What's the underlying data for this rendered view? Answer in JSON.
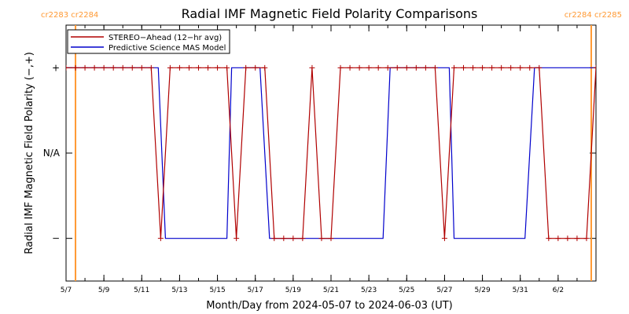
{
  "chart_data": {
    "type": "line",
    "title": "Radial IMF Magnetic Field Polarity Comparisons",
    "xlabel": "Month/Day from 2024-05-07 to 2024-06-03 (UT)",
    "ylabel": "Radial IMF Magnetic Field Polarity (−,+)",
    "xlim": [
      "2024-05-07",
      "2024-06-03"
    ],
    "ylim": [
      -1.5,
      1.5
    ],
    "x_ticks": [
      "5/7",
      "5/9",
      "5/11",
      "5/13",
      "5/15",
      "5/17",
      "5/19",
      "5/21",
      "5/23",
      "5/25",
      "5/27",
      "5/29",
      "5/31",
      "6/2"
    ],
    "y_ticks": [
      {
        "value": 1,
        "label": "+"
      },
      {
        "value": 0,
        "label": "N/A"
      },
      {
        "value": -1,
        "label": "−"
      }
    ],
    "legend_position": "top-left",
    "carrington_left": "cr2283 cr2284",
    "carrington_right": "cr2284 cr2285",
    "carrington_boundaries": [
      "2024-05-07T12:00",
      "2024-06-03T18:00"
    ],
    "series": [
      {
        "name": "STEREO−Ahead (12−hr avg)",
        "color": "#b00000",
        "marker": "+",
        "points": [
          [
            "2024-05-07T00:00",
            1
          ],
          [
            "2024-05-07T12:00",
            1
          ],
          [
            "2024-05-08T00:00",
            1
          ],
          [
            "2024-05-08T12:00",
            1
          ],
          [
            "2024-05-09T00:00",
            1
          ],
          [
            "2024-05-09T12:00",
            1
          ],
          [
            "2024-05-10T00:00",
            1
          ],
          [
            "2024-05-10T12:00",
            1
          ],
          [
            "2024-05-11T00:00",
            1
          ],
          [
            "2024-05-11T12:00",
            1
          ],
          [
            "2024-05-12T00:00",
            -1
          ],
          [
            "2024-05-12T12:00",
            1
          ],
          [
            "2024-05-13T00:00",
            1
          ],
          [
            "2024-05-13T12:00",
            1
          ],
          [
            "2024-05-14T00:00",
            1
          ],
          [
            "2024-05-14T12:00",
            1
          ],
          [
            "2024-05-15T00:00",
            1
          ],
          [
            "2024-05-15T12:00",
            1
          ],
          [
            "2024-05-16T00:00",
            -1
          ],
          [
            "2024-05-16T12:00",
            1
          ],
          [
            "2024-05-17T00:00",
            1
          ],
          [
            "2024-05-17T12:00",
            1
          ],
          [
            "2024-05-18T00:00",
            -1
          ],
          [
            "2024-05-18T12:00",
            -1
          ],
          [
            "2024-05-19T00:00",
            -1
          ],
          [
            "2024-05-19T12:00",
            -1
          ],
          [
            "2024-05-20T00:00",
            1
          ],
          [
            "2024-05-20T12:00",
            -1
          ],
          [
            "2024-05-21T00:00",
            -1
          ],
          [
            "2024-05-21T12:00",
            1
          ],
          [
            "2024-05-22T00:00",
            1
          ],
          [
            "2024-05-22T12:00",
            1
          ],
          [
            "2024-05-23T00:00",
            1
          ],
          [
            "2024-05-23T12:00",
            1
          ],
          [
            "2024-05-24T00:00",
            1
          ],
          [
            "2024-05-24T12:00",
            1
          ],
          [
            "2024-05-25T00:00",
            1
          ],
          [
            "2024-05-25T12:00",
            1
          ],
          [
            "2024-05-26T00:00",
            1
          ],
          [
            "2024-05-26T12:00",
            1
          ],
          [
            "2024-05-27T00:00",
            -1
          ],
          [
            "2024-05-27T12:00",
            1
          ],
          [
            "2024-05-28T00:00",
            1
          ],
          [
            "2024-05-28T12:00",
            1
          ],
          [
            "2024-05-29T00:00",
            1
          ],
          [
            "2024-05-29T12:00",
            1
          ],
          [
            "2024-05-30T00:00",
            1
          ],
          [
            "2024-05-30T12:00",
            1
          ],
          [
            "2024-05-31T00:00",
            1
          ],
          [
            "2024-05-31T12:00",
            1
          ],
          [
            "2024-06-01T00:00",
            1
          ],
          [
            "2024-06-01T12:00",
            -1
          ],
          [
            "2024-06-02T00:00",
            -1
          ],
          [
            "2024-06-02T12:00",
            -1
          ],
          [
            "2024-06-03T00:00",
            -1
          ],
          [
            "2024-06-03T12:00",
            -1
          ],
          [
            "2024-06-04T00:00",
            1
          ]
        ]
      },
      {
        "name": "Predictive Science MAS Model",
        "color": "#0000cc",
        "marker": "none",
        "points": [
          [
            "2024-05-07T00:00",
            1
          ],
          [
            "2024-05-11T21:00",
            1
          ],
          [
            "2024-05-12T06:00",
            -1
          ],
          [
            "2024-05-15T12:00",
            -1
          ],
          [
            "2024-05-15T18:00",
            1
          ],
          [
            "2024-05-17T06:00",
            1
          ],
          [
            "2024-05-17T18:00",
            -1
          ],
          [
            "2024-05-23T18:00",
            -1
          ],
          [
            "2024-05-24T03:00",
            1
          ],
          [
            "2024-05-27T06:00",
            1
          ],
          [
            "2024-05-27T12:00",
            -1
          ],
          [
            "2024-05-31T06:00",
            -1
          ],
          [
            "2024-05-31T18:00",
            1
          ],
          [
            "2024-06-04T00:00",
            1
          ]
        ]
      }
    ]
  }
}
